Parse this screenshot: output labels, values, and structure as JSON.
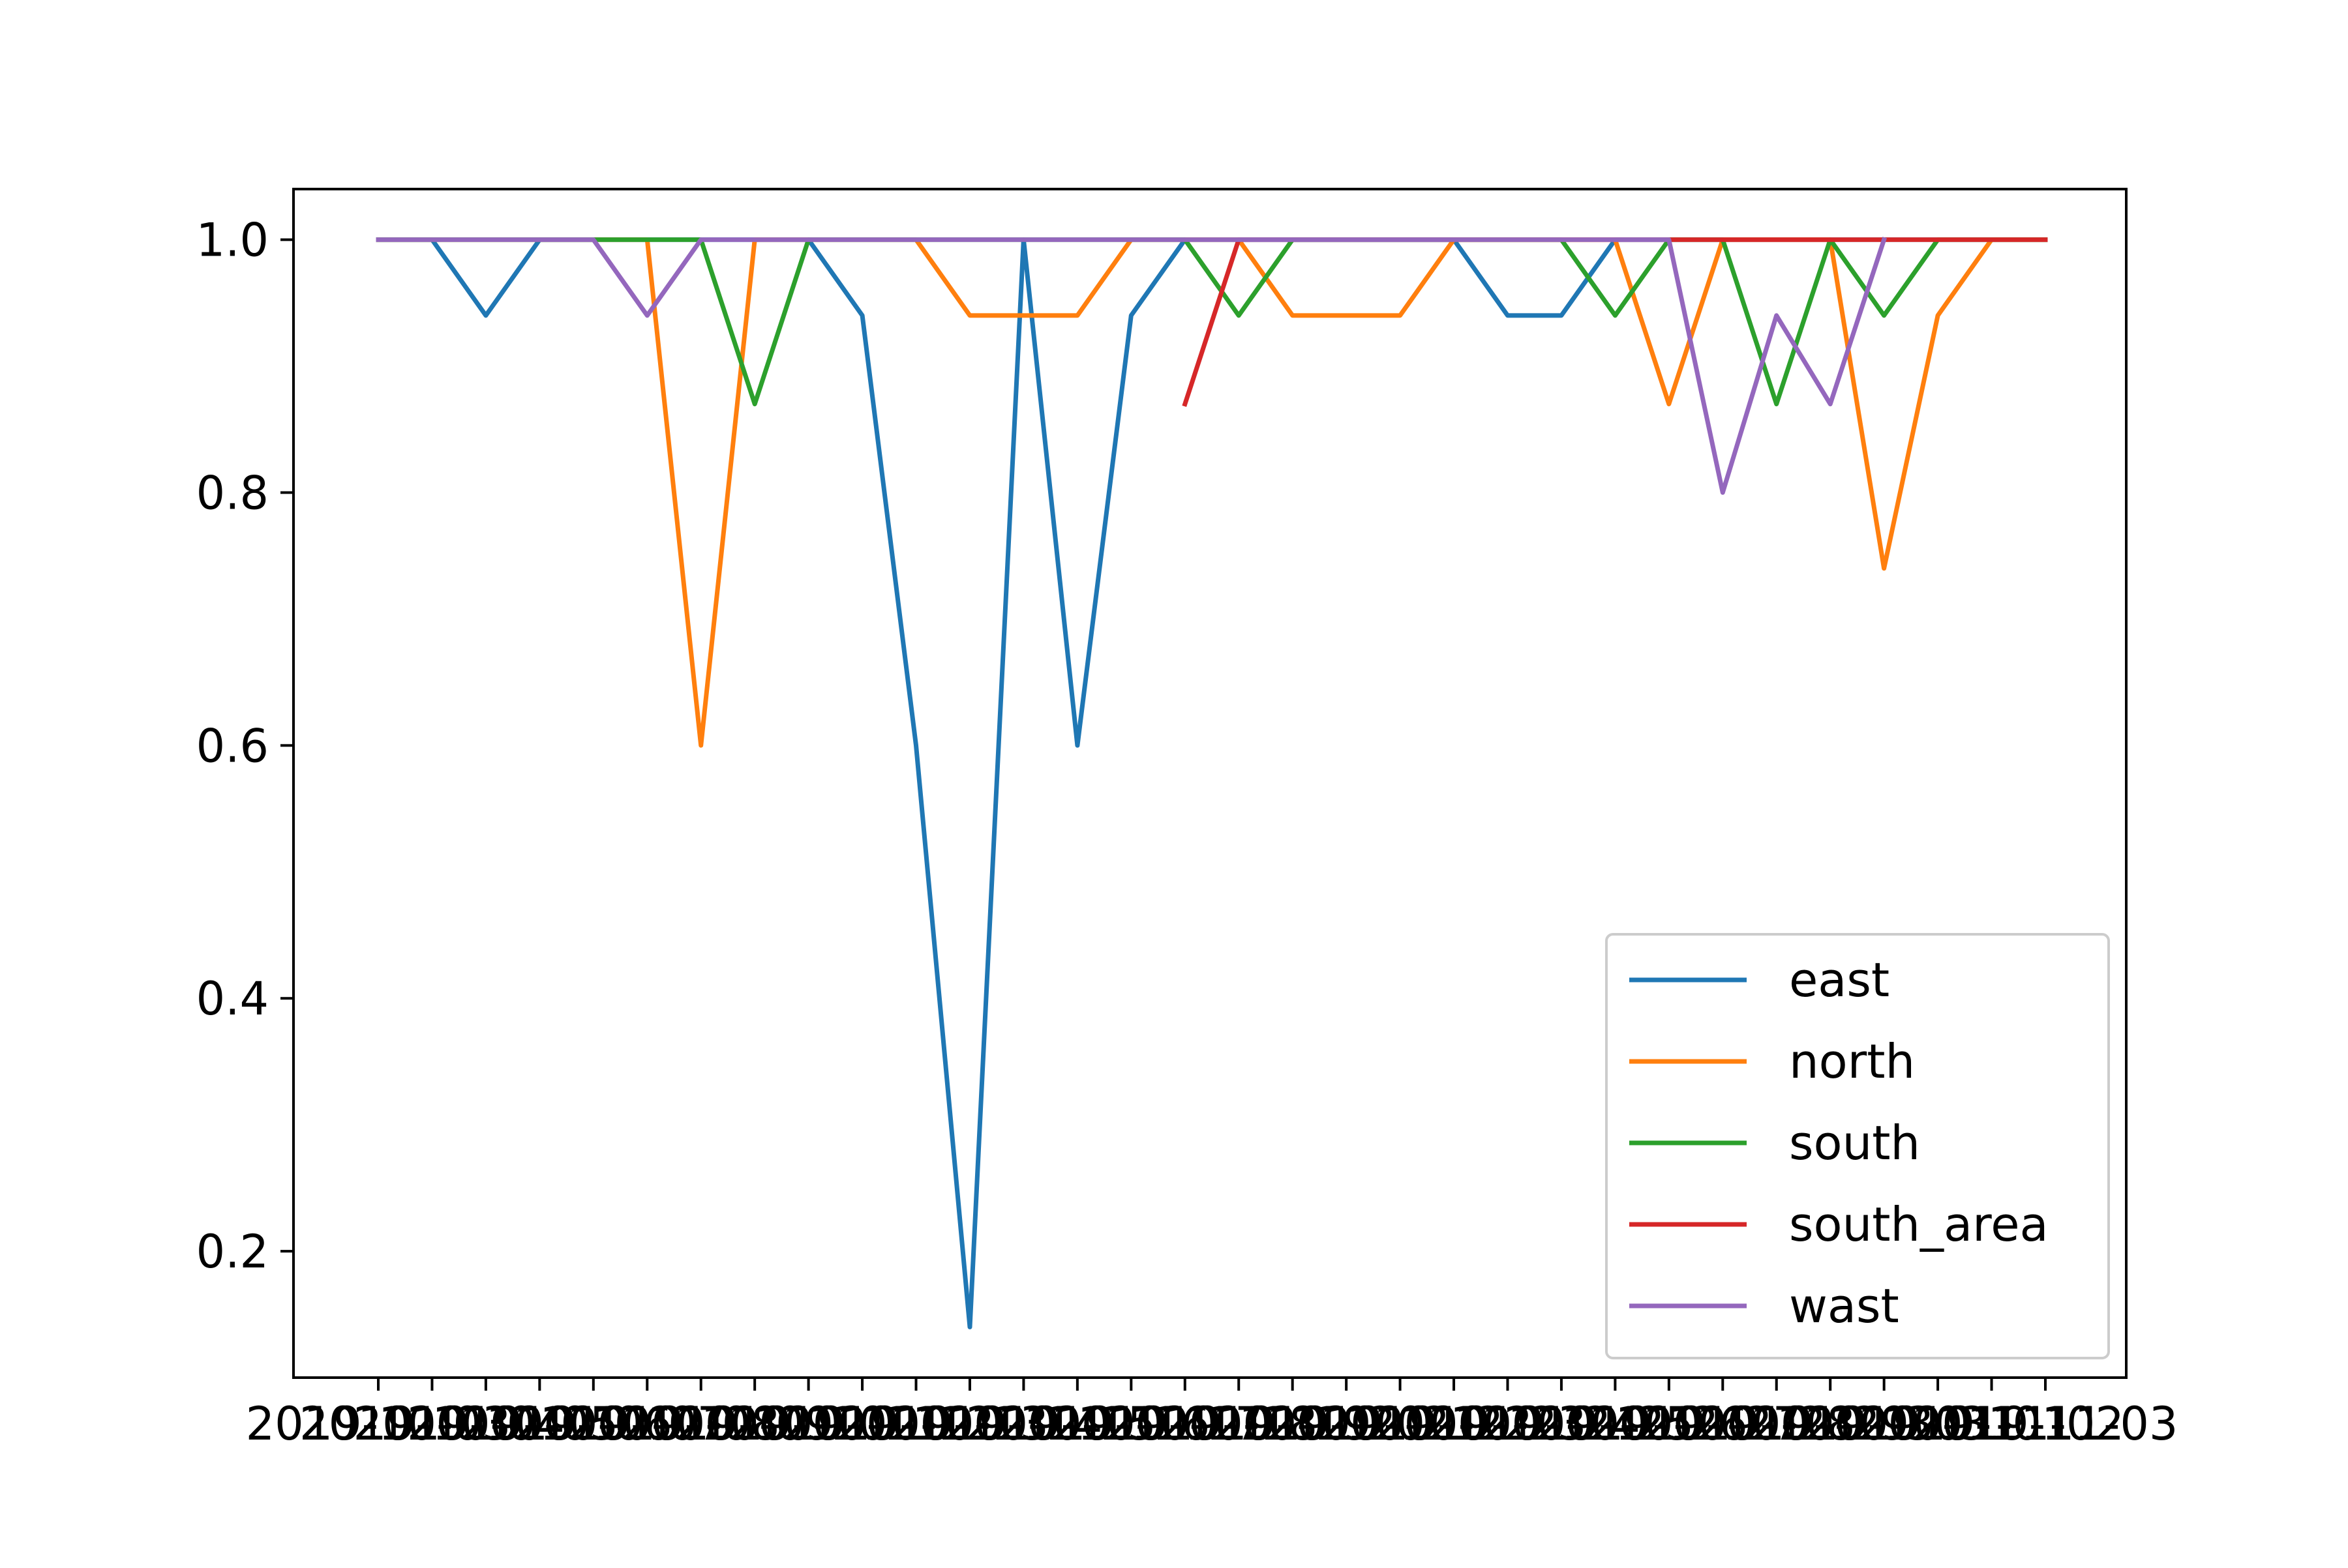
{
  "chart_data": {
    "type": "line",
    "title": "",
    "xlabel": "",
    "ylabel": "",
    "x": [
      "2019-10-03",
      "2019-10-04",
      "2019-10-05",
      "2019-10-06",
      "2019-10-07",
      "2019-10-08",
      "2019-10-09",
      "2019-10-10",
      "2019-10-11",
      "2019-10-12",
      "2019-10-13",
      "2019-10-14",
      "2019-10-15",
      "2019-10-16",
      "2019-10-17",
      "2019-10-18",
      "2019-10-19",
      "2019-10-20",
      "2019-10-21",
      "2019-10-22",
      "2019-10-23",
      "2019-10-24",
      "2019-10-25",
      "2019-10-26",
      "2019-10-27",
      "2019-10-28",
      "2019-10-29",
      "2019-10-30",
      "2019-10-31",
      "2019-11-01",
      "2019-11-02",
      "2019-11-03"
    ],
    "ylim": [
      0.1,
      1.04
    ],
    "yticks": [
      0.2,
      0.4,
      0.6,
      0.8,
      1.0
    ],
    "ytick_labels": [
      "0.2",
      "0.4",
      "0.6",
      "0.8",
      "1.0"
    ],
    "grid": false,
    "legend_position": "lower-right",
    "series": [
      {
        "name": "east",
        "color": "#1f77b4",
        "values": [
          1,
          1,
          0.94,
          1,
          1,
          1,
          1,
          1,
          1,
          0.94,
          0.6,
          0.14,
          1,
          0.6,
          0.94,
          1,
          1,
          1,
          1,
          1,
          1,
          0.94,
          0.94,
          1,
          1,
          1,
          1,
          1,
          1,
          1,
          1,
          1
        ]
      },
      {
        "name": "north",
        "color": "#ff7f0e",
        "values": [
          1,
          1,
          1,
          1,
          1,
          1,
          0.6,
          1,
          1,
          1,
          1,
          0.94,
          0.94,
          0.94,
          1,
          1,
          1,
          0.94,
          0.94,
          0.94,
          1,
          1,
          1,
          1,
          0.87,
          1,
          1,
          1,
          0.74,
          0.94,
          1,
          1
        ]
      },
      {
        "name": "south",
        "color": "#2ca02c",
        "values": [
          1,
          1,
          1,
          1,
          1,
          1,
          1,
          0.87,
          1,
          1,
          1,
          1,
          1,
          1,
          1,
          1,
          0.94,
          1,
          1,
          1,
          1,
          1,
          1,
          0.94,
          1,
          1,
          0.87,
          1,
          0.94,
          1,
          1,
          1
        ]
      },
      {
        "name": "south_area",
        "color": "#d62728",
        "values": [
          null,
          null,
          null,
          null,
          null,
          null,
          null,
          null,
          null,
          null,
          null,
          null,
          null,
          null,
          null,
          0.87,
          1,
          1,
          1,
          1,
          1,
          1,
          1,
          1,
          1,
          1,
          1,
          1,
          1,
          1,
          1,
          1
        ]
      },
      {
        "name": "wast",
        "color": "#9467bd",
        "values": [
          1,
          1,
          1,
          1,
          1,
          0.94,
          1,
          1,
          1,
          1,
          1,
          1,
          1,
          1,
          1,
          1,
          1,
          1,
          1,
          1,
          1,
          1,
          1,
          1,
          1,
          0.8,
          0.94,
          0.87,
          1,
          null,
          null,
          null
        ]
      }
    ]
  }
}
